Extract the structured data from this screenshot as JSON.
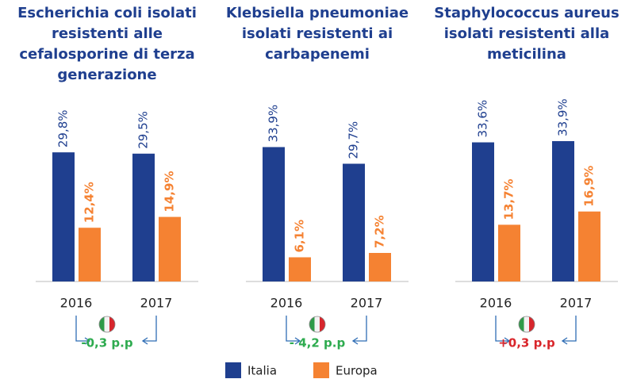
{
  "chart_data": [
    {
      "type": "bar",
      "title": "Escherichia coli isolati resistenti alle cefalosporine di terza generazione",
      "categories": [
        "2016",
        "2017"
      ],
      "ylim": [
        0,
        43
      ],
      "series": [
        {
          "name": "Italia",
          "color": "#1f3f8f",
          "values": [
            29.8,
            29.5
          ],
          "value_labels": [
            "29,8%",
            "29,5%"
          ]
        },
        {
          "name": "Europa",
          "color": "#f58232",
          "values": [
            12.4,
            14.9
          ],
          "value_labels": [
            "12,4%",
            "14,9%"
          ]
        }
      ],
      "annotation": "-0,3 p.p",
      "annotation_color": "#2eab4f"
    },
    {
      "type": "bar",
      "title": "Klebsiella pneumoniae isolati resistenti ai carbapenemi",
      "categories": [
        "2016",
        "2017"
      ],
      "ylim": [
        0,
        47
      ],
      "series": [
        {
          "name": "Italia",
          "color": "#1f3f8f",
          "values": [
            33.9,
            29.7
          ],
          "value_labels": [
            "33,9%",
            "29,7%"
          ]
        },
        {
          "name": "Europa",
          "color": "#f58232",
          "values": [
            6.1,
            7.2
          ],
          "value_labels": [
            "6,1%",
            "7,2%"
          ]
        }
      ],
      "annotation": "- 4,2 p.p",
      "annotation_color": "#2eab4f"
    },
    {
      "type": "bar",
      "title": "Staphylococcus aureus isolati resistenti alla meticilina",
      "categories": [
        "2016",
        "2017"
      ],
      "ylim": [
        0,
        45
      ],
      "series": [
        {
          "name": "Italia",
          "color": "#1f3f8f",
          "values": [
            33.6,
            33.9
          ],
          "value_labels": [
            "33,6%",
            "33,9%"
          ]
        },
        {
          "name": "Europa",
          "color": "#f58232",
          "values": [
            13.7,
            16.9
          ],
          "value_labels": [
            "13,7%",
            "16,9%"
          ]
        }
      ],
      "annotation": "+0,3 p.p",
      "annotation_color": "#d9262b"
    }
  ]
}
